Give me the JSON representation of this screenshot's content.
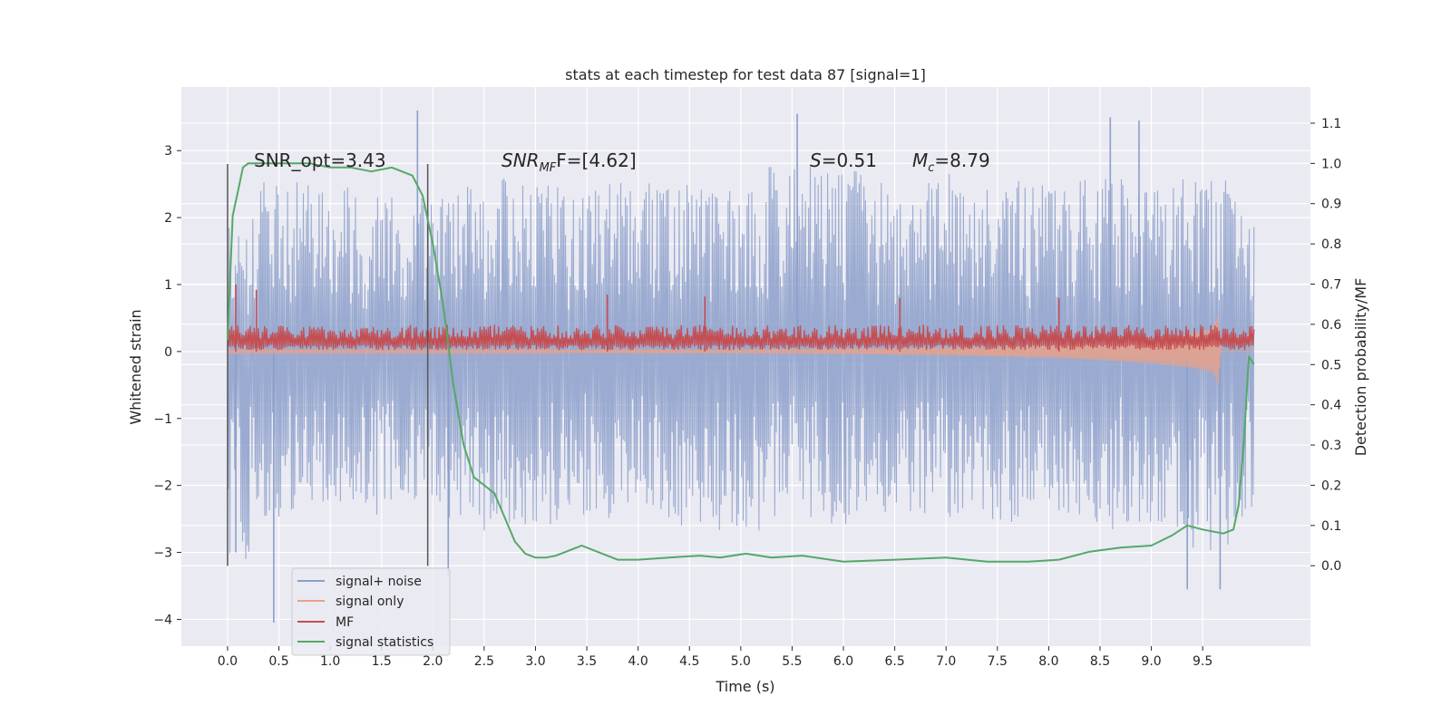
{
  "chart_data": {
    "type": "line",
    "title": "stats at each timestep for test data 87 [signal=1]",
    "xlabel": "Time (s)",
    "ylabel": "Whitened strain",
    "y2label": "Detection probability/MF",
    "xlim": [
      -0.45,
      10.55
    ],
    "ylim": [
      -4.4,
      3.95
    ],
    "y2lim": [
      -0.2,
      1.19
    ],
    "xticks": [
      "0.0",
      "0.5",
      "1.0",
      "1.5",
      "2.0",
      "2.5",
      "3.0",
      "3.5",
      "4.0",
      "4.5",
      "5.0",
      "5.5",
      "6.0",
      "6.5",
      "7.0",
      "7.5",
      "8.0",
      "8.5",
      "9.0",
      "9.5"
    ],
    "yticks": [
      "3",
      "2",
      "1",
      "0",
      "−1",
      "−2",
      "−3",
      "−4"
    ],
    "y2ticks": [
      "1.1",
      "1.0",
      "0.9",
      "0.8",
      "0.7",
      "0.6",
      "0.5",
      "0.4",
      "0.3",
      "0.2",
      "0.1",
      "0.0"
    ],
    "grid": true,
    "legend_position": "lower-left",
    "annotations": {
      "snr_opt": "SNR_opt=3.43",
      "snr_mf_label": "SNR",
      "snr_mf_sub": "MF",
      "snr_mf_tail": "F=[4.62]",
      "s_label": "S",
      "s_value": "=0.51",
      "mc_label": "M",
      "mc_sub": "c",
      "mc_value": "=8.79"
    },
    "markers": {
      "x": [
        0.0,
        1.95
      ],
      "y_range": [
        -3.2,
        2.8
      ]
    },
    "series": [
      {
        "name": "signal+ noise",
        "color": "#8c9fca",
        "axis": "left",
        "x_range": [
          0.0,
          10.0
        ],
        "envelope_upper": [
          2.2,
          2.6,
          2.5,
          2.3,
          2.4,
          2.6,
          2.5,
          2.5,
          2.6,
          2.5,
          2.4,
          2.8,
          2.7,
          2.6,
          2.7,
          2.6,
          2.5,
          2.6,
          2.5,
          2.6,
          2.4
        ],
        "envelope_lower": [
          -3.2,
          -2.5,
          -2.4,
          -2.6,
          -2.5,
          -2.7,
          -2.6,
          -2.5,
          -2.4,
          -2.6,
          -2.7,
          -2.5,
          -2.6,
          -2.4,
          -2.5,
          -2.6,
          -2.5,
          -2.7,
          -2.6,
          -3.0,
          -2.6
        ],
        "outliers": [
          [
            0.45,
            -4.05
          ],
          [
            1.85,
            3.6
          ],
          [
            5.55,
            3.55
          ],
          [
            8.6,
            3.5
          ],
          [
            8.88,
            3.45
          ],
          [
            9.35,
            -3.55
          ],
          [
            9.67,
            -3.55
          ],
          [
            0.08,
            -3.0
          ],
          [
            2.15,
            -3.35
          ]
        ]
      },
      {
        "name": "signal only",
        "color": "#e8a18a",
        "axis": "left",
        "x": [
          0.0,
          1.0,
          2.0,
          3.0,
          4.0,
          5.0,
          6.0,
          6.5,
          7.0,
          7.5,
          8.0,
          8.5,
          9.0,
          9.3,
          9.5,
          9.6,
          9.65,
          9.68,
          10.0
        ],
        "amplitude": [
          0.02,
          0.02,
          0.02,
          0.02,
          0.03,
          0.03,
          0.04,
          0.05,
          0.06,
          0.08,
          0.1,
          0.14,
          0.2,
          0.25,
          0.3,
          0.35,
          0.55,
          0.0,
          0.0
        ]
      },
      {
        "name": "MF",
        "color": "#c44e52",
        "axis": "left",
        "x_range": [
          0.0,
          10.0
        ],
        "baseline": 0.0,
        "typical_height": 0.35,
        "peaks": [
          [
            0.08,
            1.0
          ],
          [
            0.28,
            0.92
          ],
          [
            3.7,
            0.85
          ],
          [
            4.65,
            0.82
          ],
          [
            6.55,
            0.8
          ],
          [
            8.1,
            0.8
          ]
        ]
      },
      {
        "name": "signal statistics",
        "color": "#55a868",
        "axis": "right",
        "x": [
          0.0,
          0.05,
          0.1,
          0.15,
          0.2,
          0.3,
          0.5,
          0.8,
          1.0,
          1.2,
          1.4,
          1.6,
          1.8,
          1.9,
          2.0,
          2.1,
          2.2,
          2.3,
          2.4,
          2.5,
          2.6,
          2.7,
          2.8,
          2.9,
          3.0,
          3.1,
          3.2,
          3.3,
          3.45,
          3.6,
          3.8,
          4.0,
          4.3,
          4.6,
          4.8,
          5.05,
          5.3,
          5.6,
          6.0,
          6.5,
          7.0,
          7.4,
          7.8,
          8.1,
          8.4,
          8.7,
          9.0,
          9.2,
          9.35,
          9.5,
          9.7,
          9.8,
          9.85,
          9.9,
          9.95,
          10.0
        ],
        "y": [
          0.56,
          0.87,
          0.93,
          0.99,
          1.0,
          1.0,
          1.0,
          1.0,
          0.99,
          0.99,
          0.98,
          0.99,
          0.97,
          0.92,
          0.8,
          0.65,
          0.45,
          0.3,
          0.22,
          0.2,
          0.18,
          0.12,
          0.06,
          0.03,
          0.02,
          0.02,
          0.025,
          0.035,
          0.05,
          0.035,
          0.015,
          0.015,
          0.02,
          0.025,
          0.02,
          0.03,
          0.02,
          0.025,
          0.01,
          0.015,
          0.02,
          0.01,
          0.01,
          0.015,
          0.035,
          0.045,
          0.05,
          0.075,
          0.1,
          0.09,
          0.08,
          0.09,
          0.15,
          0.3,
          0.52,
          0.5
        ]
      }
    ]
  }
}
